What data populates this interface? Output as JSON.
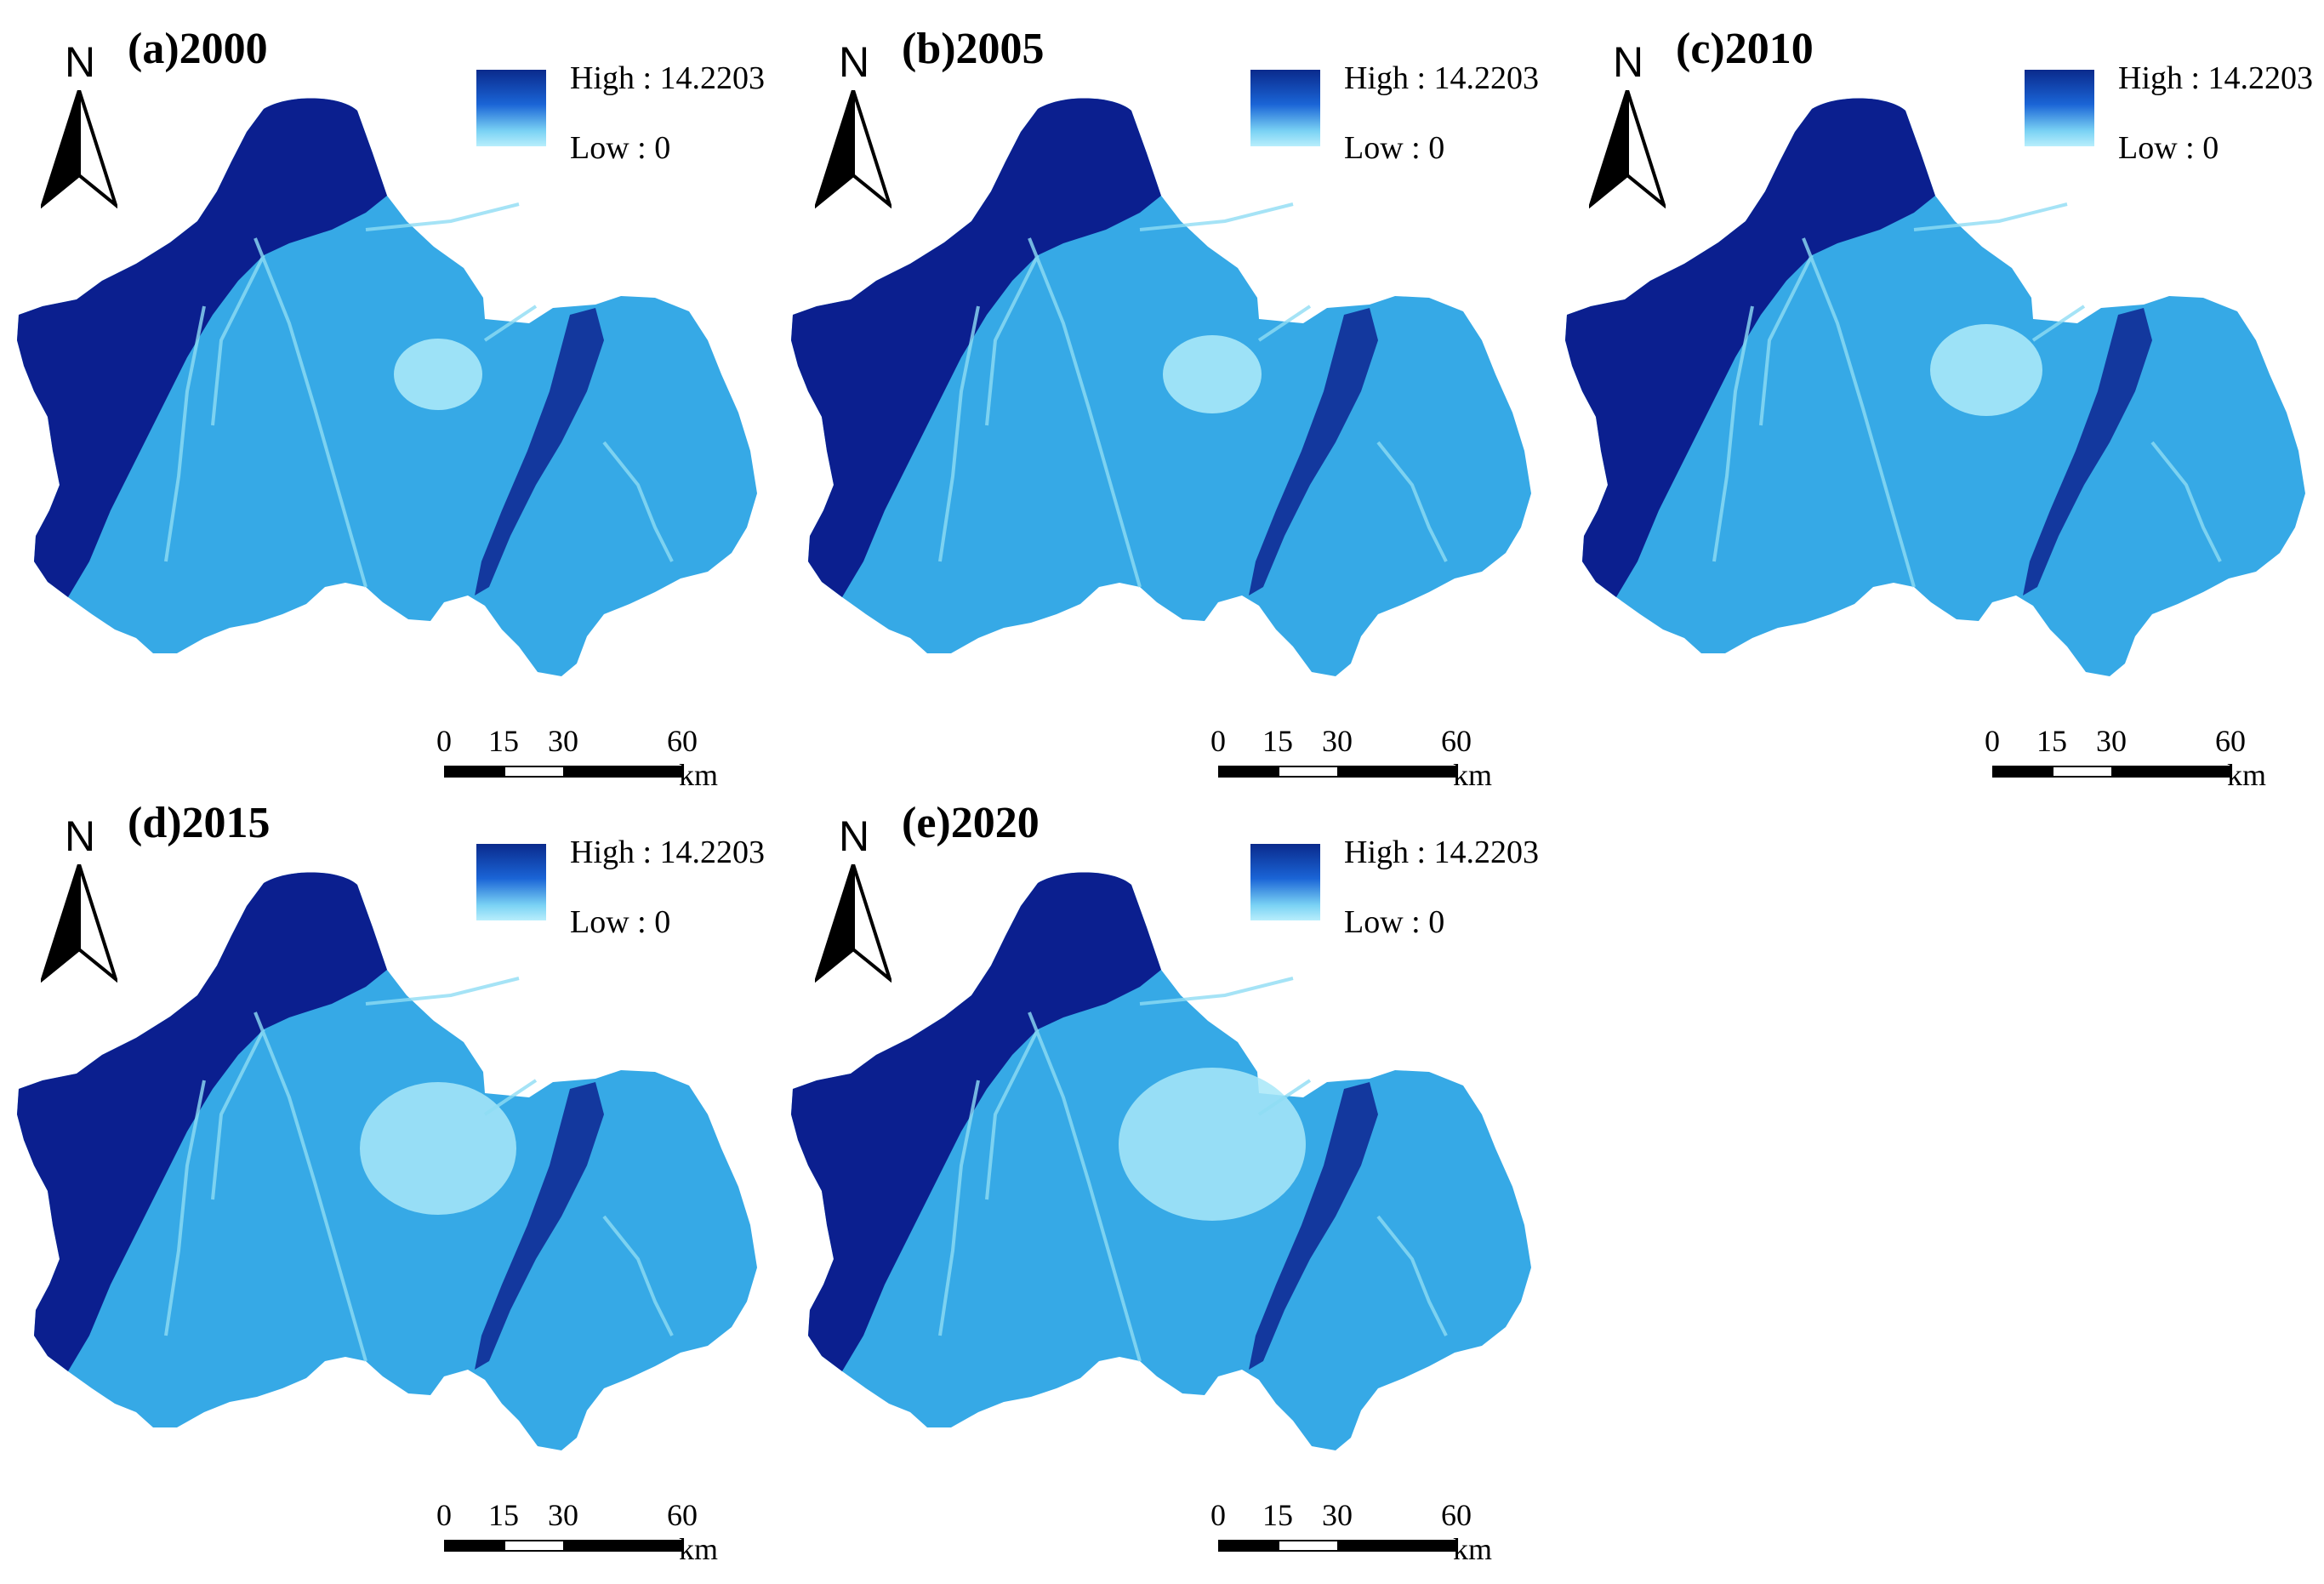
{
  "panels": [
    {
      "title": "(a)2000",
      "north": "N",
      "legend": {
        "high": "High : 14.2203",
        "low": "Low : 0"
      },
      "scale": {
        "ticks": [
          "0",
          "15",
          "30",
          "60"
        ],
        "unit": "km"
      }
    },
    {
      "title": "(b)2005",
      "north": "N",
      "legend": {
        "high": "High : 14.2203",
        "low": "Low : 0"
      },
      "scale": {
        "ticks": [
          "0",
          "15",
          "30",
          "60"
        ],
        "unit": "km"
      }
    },
    {
      "title": "(c)2010",
      "north": "N",
      "legend": {
        "high": "High : 14.2203",
        "low": "Low : 0"
      },
      "scale": {
        "ticks": [
          "0",
          "15",
          "30",
          "60"
        ],
        "unit": "km"
      }
    },
    {
      "title": "(d)2015",
      "north": "N",
      "legend": {
        "high": "High : 14.2203",
        "low": "Low : 0"
      },
      "scale": {
        "ticks": [
          "0",
          "15",
          "30",
          "60"
        ],
        "unit": "km"
      }
    },
    {
      "title": "(e)2020",
      "north": "N",
      "legend": {
        "high": "High : 14.2203",
        "low": "Low : 0"
      },
      "scale": {
        "ticks": [
          "0",
          "15",
          "30",
          "60"
        ],
        "unit": "km"
      }
    }
  ],
  "colors": {
    "high": "#0a1f8a",
    "mid": "#2e9fe0",
    "plain": "#36a9e6",
    "low": "#a8e8f8",
    "urban": "#9ee3f6"
  }
}
